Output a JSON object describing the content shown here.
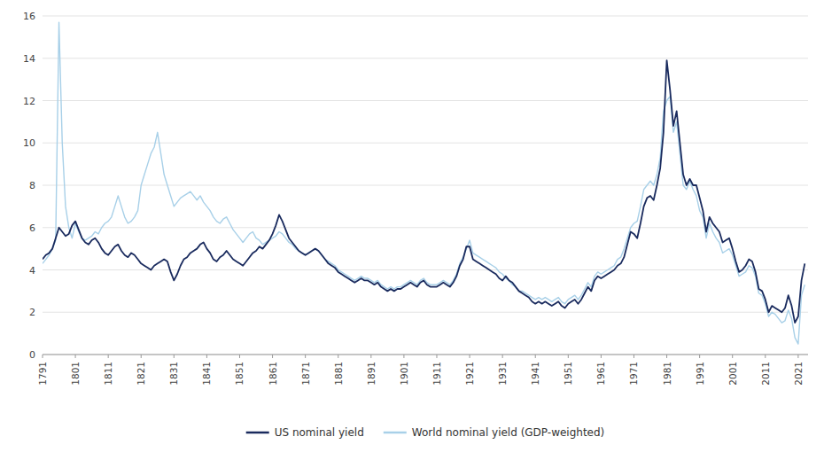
{
  "chart_data": {
    "type": "line",
    "x": [
      1791,
      1792,
      1793,
      1794,
      1795,
      1796,
      1797,
      1798,
      1799,
      1800,
      1801,
      1802,
      1803,
      1804,
      1805,
      1806,
      1807,
      1808,
      1809,
      1810,
      1811,
      1812,
      1813,
      1814,
      1815,
      1816,
      1817,
      1818,
      1819,
      1820,
      1821,
      1822,
      1823,
      1824,
      1825,
      1826,
      1827,
      1828,
      1829,
      1830,
      1831,
      1832,
      1833,
      1834,
      1835,
      1836,
      1837,
      1838,
      1839,
      1840,
      1841,
      1842,
      1843,
      1844,
      1845,
      1846,
      1847,
      1848,
      1849,
      1850,
      1851,
      1852,
      1853,
      1854,
      1855,
      1856,
      1857,
      1858,
      1859,
      1860,
      1861,
      1862,
      1863,
      1864,
      1865,
      1866,
      1867,
      1868,
      1869,
      1870,
      1871,
      1872,
      1873,
      1874,
      1875,
      1876,
      1877,
      1878,
      1879,
      1880,
      1881,
      1882,
      1883,
      1884,
      1885,
      1886,
      1887,
      1888,
      1889,
      1890,
      1891,
      1892,
      1893,
      1894,
      1895,
      1896,
      1897,
      1898,
      1899,
      1900,
      1901,
      1902,
      1903,
      1904,
      1905,
      1906,
      1907,
      1908,
      1909,
      1910,
      1911,
      1912,
      1913,
      1914,
      1915,
      1916,
      1917,
      1918,
      1919,
      1920,
      1921,
      1922,
      1923,
      1924,
      1925,
      1926,
      1927,
      1928,
      1929,
      1930,
      1931,
      1932,
      1933,
      1934,
      1935,
      1936,
      1937,
      1938,
      1939,
      1940,
      1941,
      1942,
      1943,
      1944,
      1945,
      1946,
      1947,
      1948,
      1949,
      1950,
      1951,
      1952,
      1953,
      1954,
      1955,
      1956,
      1957,
      1958,
      1959,
      1960,
      1961,
      1962,
      1963,
      1964,
      1965,
      1966,
      1967,
      1968,
      1969,
      1970,
      1971,
      1972,
      1973,
      1974,
      1975,
      1976,
      1977,
      1978,
      1979,
      1980,
      1981,
      1982,
      1983,
      1984,
      1985,
      1986,
      1987,
      1988,
      1989,
      1990,
      1991,
      1992,
      1993,
      1994,
      1995,
      1996,
      1997,
      1998,
      1999,
      2000,
      2001,
      2002,
      2003,
      2004,
      2005,
      2006,
      2007,
      2008,
      2009,
      2010,
      2011,
      2012,
      2013,
      2014,
      2015,
      2016,
      2017,
      2018,
      2019,
      2020,
      2021,
      2022,
      2023
    ],
    "series": [
      {
        "name": "US nominal yield",
        "color": "#1a2b5e",
        "values": [
          4.5,
          4.7,
          4.8,
          5.0,
          5.5,
          6.0,
          5.8,
          5.6,
          5.7,
          6.1,
          6.3,
          5.9,
          5.5,
          5.3,
          5.2,
          5.4,
          5.5,
          5.3,
          5.0,
          4.8,
          4.7,
          4.9,
          5.1,
          5.2,
          4.9,
          4.7,
          4.6,
          4.8,
          4.7,
          4.5,
          4.3,
          4.2,
          4.1,
          4.0,
          4.2,
          4.3,
          4.4,
          4.5,
          4.4,
          3.9,
          3.5,
          3.8,
          4.2,
          4.5,
          4.6,
          4.8,
          4.9,
          5.0,
          5.2,
          5.3,
          5.0,
          4.8,
          4.5,
          4.4,
          4.6,
          4.7,
          4.9,
          4.7,
          4.5,
          4.4,
          4.3,
          4.2,
          4.4,
          4.6,
          4.8,
          4.9,
          5.1,
          5.0,
          5.2,
          5.4,
          5.7,
          6.1,
          6.6,
          6.3,
          5.9,
          5.5,
          5.3,
          5.1,
          4.9,
          4.8,
          4.7,
          4.8,
          4.9,
          5.0,
          4.9,
          4.7,
          4.5,
          4.3,
          4.2,
          4.1,
          3.9,
          3.8,
          3.7,
          3.6,
          3.5,
          3.4,
          3.5,
          3.6,
          3.5,
          3.5,
          3.4,
          3.3,
          3.4,
          3.2,
          3.1,
          3.0,
          3.1,
          3.0,
          3.1,
          3.1,
          3.2,
          3.3,
          3.4,
          3.3,
          3.2,
          3.4,
          3.5,
          3.3,
          3.2,
          3.2,
          3.2,
          3.3,
          3.4,
          3.3,
          3.2,
          3.4,
          3.7,
          4.2,
          4.5,
          5.1,
          5.1,
          4.5,
          4.4,
          4.3,
          4.2,
          4.1,
          4.0,
          3.9,
          3.8,
          3.6,
          3.5,
          3.7,
          3.5,
          3.4,
          3.2,
          3.0,
          2.9,
          2.8,
          2.7,
          2.5,
          2.4,
          2.5,
          2.4,
          2.5,
          2.4,
          2.3,
          2.4,
          2.5,
          2.3,
          2.2,
          2.4,
          2.5,
          2.6,
          2.4,
          2.6,
          2.9,
          3.2,
          3.0,
          3.5,
          3.7,
          3.6,
          3.7,
          3.8,
          3.9,
          4.0,
          4.2,
          4.3,
          4.6,
          5.2,
          5.8,
          5.7,
          5.5,
          6.2,
          7.0,
          7.4,
          7.5,
          7.3,
          8.0,
          8.8,
          10.5,
          13.9,
          12.5,
          10.8,
          11.5,
          10.0,
          8.5,
          8.0,
          8.3,
          8.0,
          8.0,
          7.4,
          6.8,
          5.8,
          6.5,
          6.2,
          6.0,
          5.8,
          5.3,
          5.4,
          5.5,
          5.0,
          4.4,
          3.9,
          4.0,
          4.2,
          4.5,
          4.4,
          3.9,
          3.1,
          3.0,
          2.6,
          2.0,
          2.3,
          2.2,
          2.1,
          2.0,
          2.2,
          2.8,
          2.3,
          1.5,
          1.8,
          3.5,
          4.3
        ]
      },
      {
        "name": "World nominal yield (GDP-weighted)",
        "color": "#a8d0e8",
        "values": [
          4.3,
          4.5,
          4.7,
          5.0,
          5.4,
          15.7,
          10.0,
          7.0,
          6.0,
          5.5,
          6.2,
          5.8,
          5.5,
          5.4,
          5.5,
          5.6,
          5.8,
          5.7,
          6.0,
          6.2,
          6.3,
          6.5,
          7.0,
          7.5,
          7.0,
          6.5,
          6.2,
          6.3,
          6.5,
          6.8,
          8.0,
          8.5,
          9.0,
          9.5,
          9.8,
          10.5,
          9.5,
          8.5,
          8.0,
          7.5,
          7.0,
          7.2,
          7.4,
          7.5,
          7.6,
          7.7,
          7.5,
          7.3,
          7.5,
          7.2,
          7.0,
          6.8,
          6.5,
          6.3,
          6.2,
          6.4,
          6.5,
          6.2,
          5.9,
          5.7,
          5.5,
          5.3,
          5.5,
          5.7,
          5.8,
          5.5,
          5.4,
          5.2,
          5.3,
          5.4,
          5.5,
          5.6,
          5.8,
          5.7,
          5.5,
          5.3,
          5.2,
          5.0,
          4.9,
          4.8,
          4.7,
          4.8,
          4.9,
          5.0,
          4.9,
          4.7,
          4.5,
          4.4,
          4.3,
          4.2,
          4.0,
          3.9,
          3.8,
          3.7,
          3.6,
          3.5,
          3.6,
          3.7,
          3.6,
          3.6,
          3.5,
          3.4,
          3.5,
          3.3,
          3.2,
          3.1,
          3.2,
          3.1,
          3.2,
          3.2,
          3.3,
          3.4,
          3.5,
          3.4,
          3.3,
          3.5,
          3.6,
          3.4,
          3.3,
          3.3,
          3.3,
          3.4,
          3.5,
          3.4,
          3.3,
          3.5,
          3.8,
          4.3,
          4.6,
          5.0,
          5.4,
          4.8,
          4.7,
          4.6,
          4.5,
          4.4,
          4.3,
          4.2,
          4.1,
          3.9,
          3.8,
          3.6,
          3.5,
          3.3,
          3.2,
          3.0,
          3.0,
          2.9,
          2.8,
          2.7,
          2.6,
          2.7,
          2.6,
          2.7,
          2.6,
          2.5,
          2.6,
          2.7,
          2.5,
          2.4,
          2.6,
          2.7,
          2.8,
          2.6,
          2.8,
          3.1,
          3.4,
          3.2,
          3.7,
          3.9,
          3.8,
          3.9,
          4.0,
          4.1,
          4.2,
          4.5,
          4.6,
          5.0,
          5.5,
          6.0,
          6.2,
          6.3,
          7.0,
          7.8,
          8.0,
          8.2,
          8.0,
          8.5,
          9.3,
          11.5,
          12.0,
          12.2,
          10.5,
          11.0,
          9.5,
          8.0,
          7.8,
          8.2,
          7.8,
          7.5,
          6.8,
          6.5,
          5.5,
          6.2,
          5.8,
          5.5,
          5.3,
          4.8,
          4.9,
          5.0,
          4.7,
          4.2,
          3.7,
          3.8,
          3.9,
          4.2,
          4.1,
          3.7,
          2.9,
          2.8,
          2.4,
          1.8,
          2.0,
          1.9,
          1.7,
          1.5,
          1.6,
          2.1,
          1.7,
          0.8,
          0.5,
          2.8,
          3.3
        ]
      }
    ],
    "xlim": [
      1791,
      2024
    ],
    "xticks": [
      1791,
      1801,
      1811,
      1821,
      1831,
      1841,
      1851,
      1861,
      1871,
      1881,
      1891,
      1901,
      1911,
      1921,
      1931,
      1941,
      1951,
      1961,
      1971,
      1981,
      1991,
      2001,
      2011,
      2021
    ],
    "ylim": [
      0,
      16
    ],
    "yticks": [
      0,
      2,
      4,
      6,
      8,
      10,
      12,
      14,
      16
    ],
    "grid": true,
    "legend": "bottom"
  }
}
